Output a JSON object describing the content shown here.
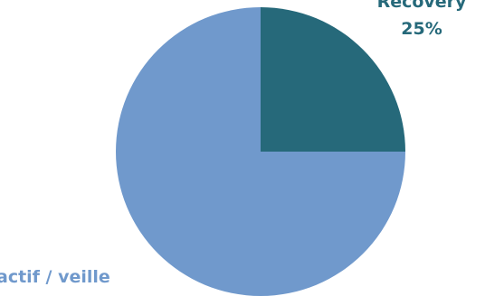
{
  "chart_data": {
    "type": "pie",
    "slices": [
      {
        "label": "Recovery",
        "value": 25,
        "value_label": "25%",
        "color": "#26697a"
      },
      {
        "label": "actif / veille",
        "value": 75,
        "value_label": "",
        "color": "#7099cc"
      }
    ],
    "start": "12 o'clock",
    "direction": "clockwise",
    "legend": "none",
    "data_labels": {
      "Recovery": {
        "name": "Recovery",
        "percent": "25%",
        "color": "#26697a"
      },
      "actif_veille": {
        "name": "actif / veille",
        "color": "#7099cc"
      }
    }
  }
}
